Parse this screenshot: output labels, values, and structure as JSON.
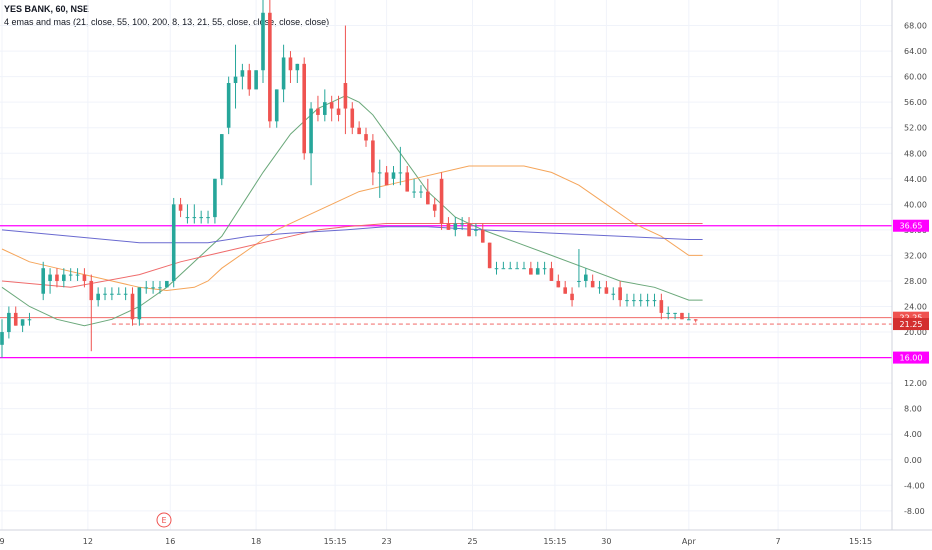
{
  "header": {
    "title": "YES BANK, 60, NSE",
    "indicator": "4 emas and mas (21, close, 55, 100, 200, 8, 13, 21, 55, close, close, close, close)"
  },
  "colors": {
    "up": "#26a69a",
    "down": "#ef5350",
    "hline": "#ff00ff",
    "dashed": "#ef5350",
    "grid": "#f0f3fa",
    "ma_green": "#6aa87a",
    "ma_orange": "#f5a55a",
    "ma_red": "#ef6b6b",
    "ma_blue": "#6a6ad0",
    "badge_red": "#ef5350",
    "badge_dark": "#d32f2f",
    "badge_magenta": "#ff00ff"
  },
  "event_marker": {
    "label": "E",
    "icon": "earnings-event-icon"
  },
  "chart_data": {
    "type": "candlestick",
    "ylim": [
      -11,
      72
    ],
    "y_ticks": [
      -8,
      -4,
      0,
      4,
      8,
      12,
      16,
      20,
      24,
      28,
      32,
      36,
      40,
      44,
      48,
      52,
      56,
      60,
      64,
      68
    ],
    "x_ticks": [
      {
        "label": "9",
        "x": 0
      },
      {
        "label": "12",
        "x": 12.5
      },
      {
        "label": "16",
        "x": 24.5
      },
      {
        "label": "18",
        "x": 37
      },
      {
        "label": "15:15",
        "x": 48.5
      },
      {
        "label": "23",
        "x": 56
      },
      {
        "label": "25",
        "x": 68.5
      },
      {
        "label": "15:15",
        "x": 80.5
      },
      {
        "label": "30",
        "x": 88
      },
      {
        "label": "Apr",
        "x": 100
      },
      {
        "label": "7",
        "x": 113
      },
      {
        "label": "15:15",
        "x": 125
      }
    ],
    "x_range": [
      0,
      129
    ],
    "candles": [
      [
        0,
        18,
        22,
        16,
        20
      ],
      [
        1,
        20,
        24,
        19,
        23
      ],
      [
        2,
        23,
        24,
        21,
        21
      ],
      [
        3,
        21,
        22,
        20,
        22
      ],
      [
        4,
        22,
        23,
        21,
        22
      ],
      [
        6,
        26,
        31,
        25,
        30
      ],
      [
        7,
        28,
        30,
        26,
        29
      ],
      [
        8,
        29,
        30,
        27,
        28
      ],
      [
        9,
        28,
        30,
        27,
        29
      ],
      [
        10,
        29,
        30,
        28,
        29
      ],
      [
        11,
        29,
        30,
        28,
        29
      ],
      [
        12,
        29,
        30,
        27,
        28
      ],
      [
        13,
        28,
        29,
        17,
        25
      ],
      [
        14,
        25,
        27,
        24,
        26
      ],
      [
        15,
        26,
        27,
        25,
        26
      ],
      [
        16,
        26,
        27,
        25,
        26
      ],
      [
        17,
        26,
        27,
        26,
        26
      ],
      [
        18,
        26,
        27,
        25,
        26
      ],
      [
        19,
        26,
        27,
        21,
        22
      ],
      [
        20,
        22,
        27,
        21,
        27
      ],
      [
        21,
        27,
        28,
        26,
        27
      ],
      [
        22,
        27,
        28,
        26,
        27
      ],
      [
        23,
        27,
        28,
        26,
        27
      ],
      [
        24,
        27,
        28,
        27,
        28
      ],
      [
        25,
        28,
        41,
        27,
        40
      ],
      [
        26,
        40,
        41,
        38,
        39
      ],
      [
        27,
        38,
        40,
        37,
        38
      ],
      [
        28,
        38,
        40,
        37,
        38
      ],
      [
        29,
        38,
        39,
        37,
        38
      ],
      [
        30,
        38,
        39,
        37,
        38
      ],
      [
        31,
        38,
        44,
        37,
        44
      ],
      [
        32,
        44,
        51,
        43,
        51
      ],
      [
        33,
        52,
        60,
        51,
        59
      ],
      [
        34,
        59,
        65,
        55,
        60
      ],
      [
        35,
        60,
        62,
        58,
        61
      ],
      [
        36,
        61,
        62,
        57,
        58
      ],
      [
        37,
        58,
        61,
        58,
        61
      ],
      [
        38,
        61,
        72,
        59,
        70
      ],
      [
        39,
        70,
        77,
        52,
        53
      ],
      [
        40,
        53,
        58,
        52,
        58
      ],
      [
        41,
        58,
        65,
        56,
        63
      ],
      [
        42,
        63,
        64,
        59,
        61
      ],
      [
        43,
        61,
        62,
        59,
        62
      ],
      [
        44,
        62,
        63,
        47,
        48
      ],
      [
        45,
        48,
        56,
        43,
        55
      ],
      [
        46,
        55,
        57,
        53,
        54
      ],
      [
        47,
        54,
        58,
        53,
        56
      ],
      [
        48,
        56,
        57,
        53,
        55
      ],
      [
        49,
        55,
        57,
        53,
        54
      ],
      [
        50,
        59,
        68,
        51,
        55
      ],
      [
        51,
        55,
        56,
        51,
        52
      ],
      [
        52,
        52,
        53,
        51,
        51
      ],
      [
        53,
        51,
        52,
        49,
        50
      ],
      [
        54,
        50,
        51,
        43,
        45
      ],
      [
        55,
        45,
        47,
        41,
        45
      ],
      [
        56,
        45,
        46,
        43,
        43
      ],
      [
        57,
        44,
        46,
        43,
        45
      ],
      [
        58,
        45,
        49,
        43,
        45
      ],
      [
        59,
        45,
        46,
        42,
        42
      ],
      [
        60,
        42,
        44,
        41,
        42
      ],
      [
        61,
        42,
        43,
        41,
        42
      ],
      [
        62,
        42,
        44,
        40,
        40
      ],
      [
        63,
        40,
        41,
        38,
        39
      ],
      [
        64,
        44,
        45,
        36,
        37
      ],
      [
        65,
        37,
        38,
        36,
        36
      ],
      [
        66,
        36,
        38,
        35,
        37
      ],
      [
        67,
        37,
        38,
        36,
        37
      ],
      [
        68,
        37,
        38,
        35,
        35
      ],
      [
        69,
        36,
        37,
        35,
        36
      ],
      [
        70,
        36,
        37,
        34,
        34
      ],
      [
        71,
        34,
        34,
        30,
        30
      ],
      [
        72,
        30,
        31,
        29,
        30
      ],
      [
        73,
        30,
        31,
        30,
        30
      ],
      [
        74,
        30,
        31,
        30,
        30
      ],
      [
        75,
        30,
        31,
        30,
        30
      ],
      [
        76,
        30,
        31,
        30,
        30
      ],
      [
        77,
        30,
        31,
        29,
        29
      ],
      [
        78,
        29,
        31,
        29,
        30
      ],
      [
        79,
        30,
        31,
        29,
        30
      ],
      [
        80,
        30,
        31,
        28,
        28
      ],
      [
        81,
        28,
        29,
        27,
        27
      ],
      [
        82,
        27,
        28,
        26,
        26
      ],
      [
        83,
        26,
        27,
        24,
        25
      ],
      [
        84,
        28,
        33,
        27,
        28
      ],
      [
        85,
        28,
        30,
        27,
        29
      ],
      [
        86,
        28,
        29,
        27,
        27
      ],
      [
        87,
        27,
        28,
        26,
        27
      ],
      [
        88,
        27,
        28,
        26,
        26
      ],
      [
        89,
        26,
        27,
        25,
        26
      ],
      [
        90,
        27,
        28,
        24,
        25
      ],
      [
        91,
        25,
        26,
        24,
        25
      ],
      [
        92,
        25,
        26,
        24,
        25
      ],
      [
        93,
        25,
        26,
        24,
        25
      ],
      [
        94,
        25,
        26,
        24,
        25
      ],
      [
        95,
        25,
        26,
        24,
        25
      ],
      [
        96,
        25,
        26,
        22,
        23
      ],
      [
        97,
        23,
        24,
        22,
        23
      ],
      [
        98,
        23,
        23,
        22,
        23
      ],
      [
        99,
        23,
        23,
        22,
        22
      ],
      [
        100,
        22,
        23,
        22,
        22
      ],
      [
        101,
        22,
        22,
        21.5,
        21.8
      ]
    ],
    "series": [
      {
        "color": "ma_green",
        "points": [
          [
            0,
            27
          ],
          [
            4,
            24
          ],
          [
            8,
            22
          ],
          [
            12,
            21
          ],
          [
            16,
            22
          ],
          [
            20,
            24
          ],
          [
            24,
            27
          ],
          [
            28,
            31
          ],
          [
            30,
            33
          ],
          [
            32,
            35
          ],
          [
            35,
            40
          ],
          [
            38,
            45
          ],
          [
            40,
            48
          ],
          [
            42,
            51
          ],
          [
            44,
            53
          ],
          [
            46,
            55
          ],
          [
            48,
            56
          ],
          [
            50,
            57
          ],
          [
            52,
            56
          ],
          [
            54,
            54
          ],
          [
            56,
            51
          ],
          [
            58,
            48
          ],
          [
            60,
            45
          ],
          [
            62,
            42
          ],
          [
            64,
            40
          ],
          [
            66,
            38
          ],
          [
            70,
            36
          ],
          [
            75,
            34
          ],
          [
            80,
            32
          ],
          [
            85,
            30
          ],
          [
            90,
            28
          ],
          [
            95,
            27
          ],
          [
            100,
            25
          ],
          [
            102,
            25
          ]
        ]
      },
      {
        "color": "ma_orange",
        "points": [
          [
            0,
            33
          ],
          [
            4,
            31
          ],
          [
            8,
            30
          ],
          [
            12,
            29
          ],
          [
            16,
            28
          ],
          [
            20,
            27
          ],
          [
            24,
            26.5
          ],
          [
            28,
            27
          ],
          [
            30,
            28
          ],
          [
            32,
            30
          ],
          [
            36,
            33
          ],
          [
            40,
            36
          ],
          [
            44,
            38
          ],
          [
            48,
            40
          ],
          [
            52,
            42
          ],
          [
            56,
            43
          ],
          [
            60,
            44
          ],
          [
            64,
            45
          ],
          [
            68,
            46
          ],
          [
            72,
            46
          ],
          [
            76,
            46
          ],
          [
            80,
            45
          ],
          [
            84,
            43
          ],
          [
            88,
            40
          ],
          [
            92,
            37
          ],
          [
            96,
            35
          ],
          [
            100,
            32
          ],
          [
            102,
            32
          ]
        ]
      },
      {
        "color": "ma_red",
        "points": [
          [
            0,
            28
          ],
          [
            10,
            27
          ],
          [
            20,
            29
          ],
          [
            26,
            31
          ],
          [
            30,
            32
          ],
          [
            34,
            33
          ],
          [
            38,
            34
          ],
          [
            42,
            35
          ],
          [
            46,
            36
          ],
          [
            50,
            36.5
          ],
          [
            56,
            37
          ],
          [
            62,
            37
          ],
          [
            70,
            37
          ],
          [
            80,
            37
          ],
          [
            90,
            37
          ],
          [
            100,
            37
          ],
          [
            102,
            37
          ]
        ]
      },
      {
        "color": "ma_blue",
        "points": [
          [
            0,
            36
          ],
          [
            10,
            35
          ],
          [
            20,
            34
          ],
          [
            26,
            34
          ],
          [
            30,
            34
          ],
          [
            36,
            35
          ],
          [
            42,
            35.5
          ],
          [
            50,
            36
          ],
          [
            56,
            36.5
          ],
          [
            62,
            36.5
          ],
          [
            70,
            36
          ],
          [
            80,
            35.5
          ],
          [
            90,
            35
          ],
          [
            100,
            34.5
          ],
          [
            102,
            34.5
          ]
        ]
      }
    ],
    "hlines": [
      {
        "value": 36.65,
        "label": "36.65",
        "style": "solid",
        "color": "hline"
      },
      {
        "value": 16.0,
        "label": "16.00",
        "style": "solid",
        "color": "hline"
      },
      {
        "value": 22.25,
        "label": "22.25",
        "style": "solid-thin",
        "color": "dashed"
      },
      {
        "value": 21.25,
        "label": "21.25",
        "style": "dashed",
        "color": "dashed"
      }
    ],
    "dashed_from_x": 16
  }
}
